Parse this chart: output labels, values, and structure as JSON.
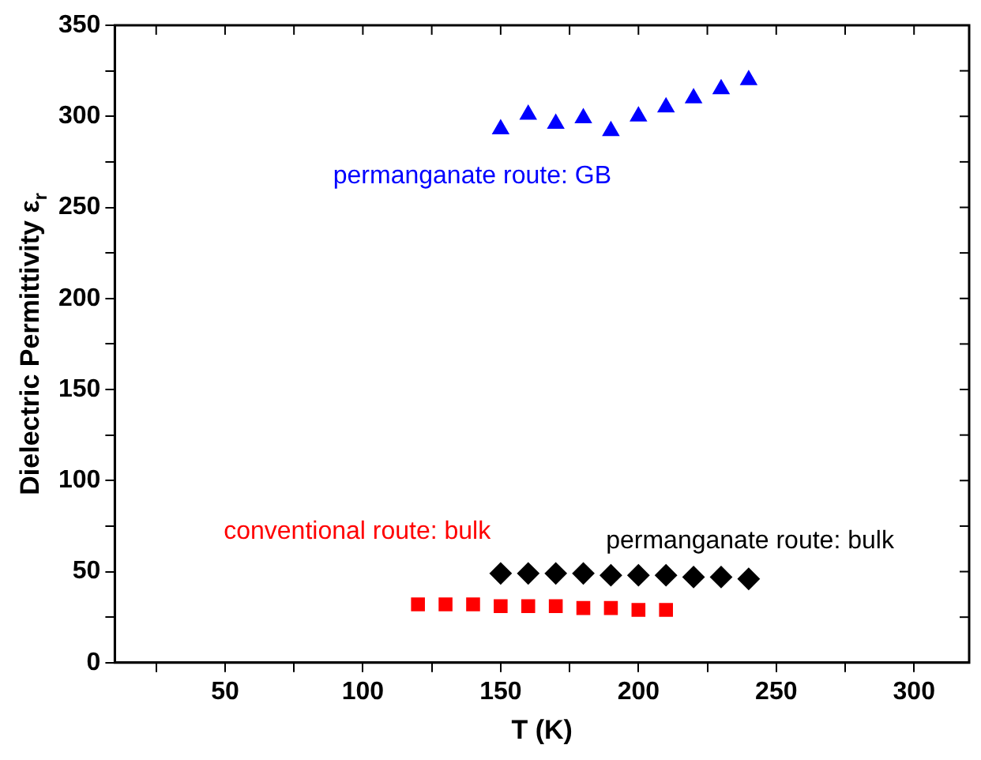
{
  "chart_data": {
    "type": "scatter",
    "xlabel": "T (K)",
    "ylabel": "Dielectric Permittivity ε$_{r}$",
    "xlim": [
      10,
      320
    ],
    "ylim": [
      0,
      350
    ],
    "xticks": [
      {
        "value": 25,
        "label": null
      },
      50,
      {
        "value": 75,
        "label": null
      },
      100,
      {
        "value": 125,
        "label": null
      },
      150,
      {
        "value": 175,
        "label": null
      },
      200,
      {
        "value": 225,
        "label": null
      },
      250,
      {
        "value": 275,
        "label": null
      },
      300
    ],
    "yticks": [
      0,
      {
        "value": 25,
        "label": null
      },
      50,
      {
        "value": 75,
        "label": null
      },
      100,
      {
        "value": 125,
        "label": null
      },
      150,
      {
        "value": 175,
        "label": null
      },
      200,
      {
        "value": 225,
        "label": null
      },
      250,
      {
        "value": 275,
        "label": null
      },
      300,
      {
        "value": 325,
        "label": null
      },
      350
    ],
    "grid": false,
    "legend": false,
    "series": [
      {
        "name": "permanganate route: GB",
        "color": "#0000ff",
        "marker": "triangle",
        "x": [
          150,
          160,
          170,
          180,
          190,
          200,
          210,
          220,
          230,
          240
        ],
        "values": [
          293,
          301,
          296,
          299,
          292,
          300,
          305,
          310,
          315,
          320
        ]
      },
      {
        "name": "permanganate route: bulk",
        "color": "#000000",
        "marker": "diamond",
        "x": [
          150,
          160,
          170,
          180,
          190,
          200,
          210,
          220,
          230,
          240
        ],
        "values": [
          49,
          49,
          49,
          49,
          48,
          48,
          48,
          47,
          47,
          46
        ]
      },
      {
        "name": "conventional route: bulk",
        "color": "#ff0000",
        "marker": "square",
        "x": [
          120,
          130,
          140,
          150,
          160,
          170,
          180,
          190,
          200,
          210
        ],
        "values": [
          32,
          32,
          32,
          31,
          31,
          31,
          30,
          30,
          29,
          29
        ]
      }
    ]
  }
}
